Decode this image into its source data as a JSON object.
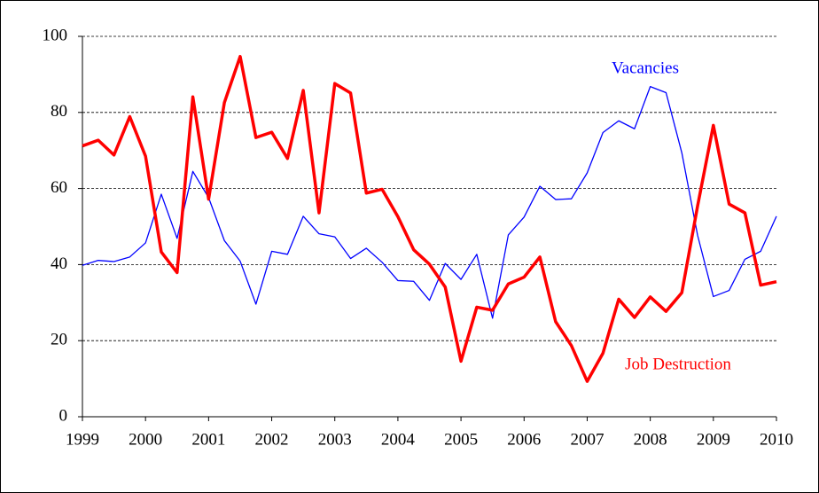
{
  "chart_data": {
    "type": "line",
    "x": [
      1999,
      1999.25,
      1999.5,
      1999.75,
      2000,
      2000.25,
      2000.5,
      2000.75,
      2001,
      2001.25,
      2001.5,
      2001.75,
      2002,
      2002.25,
      2002.5,
      2002.75,
      2003,
      2003.25,
      2003.5,
      2003.75,
      2004,
      2004.25,
      2004.5,
      2004.75,
      2005,
      2005.25,
      2005.5,
      2005.75,
      2006,
      2006.25,
      2006.5,
      2006.75,
      2007,
      2007.25,
      2007.5,
      2007.75,
      2008,
      2008.25,
      2008.5,
      2008.75,
      2009,
      2009.25,
      2009.5,
      2009.75,
      2010
    ],
    "series": [
      {
        "name": "Vacancies",
        "color": "#0000ff",
        "line_width": 1.3,
        "values": [
          39.8,
          41.1,
          40.8,
          42.0,
          45.7,
          58.5,
          46.9,
          64.5,
          57.6,
          46.3,
          40.9,
          29.6,
          43.5,
          42.7,
          52.7,
          48.1,
          47.3,
          41.6,
          44.3,
          40.6,
          35.8,
          35.6,
          30.6,
          40.3,
          36.1,
          42.7,
          25.9,
          47.8,
          52.5,
          60.6,
          57.1,
          57.3,
          64.1,
          74.7,
          77.8,
          75.7,
          86.8,
          85.2,
          69.4,
          47.7,
          31.6,
          33.2,
          41.4,
          43.5,
          52.7
        ]
      },
      {
        "name": "Job Destruction",
        "color": "#ff0000",
        "line_width": 3.5,
        "values": [
          71.2,
          72.7,
          68.8,
          78.9,
          68.5,
          43.3,
          37.9,
          84.1,
          57.2,
          82.6,
          94.7,
          73.4,
          74.8,
          67.9,
          85.8,
          53.6,
          87.6,
          85.1,
          58.8,
          59.8,
          52.6,
          43.9,
          40.1,
          34.1,
          14.6,
          28.8,
          28.0,
          34.9,
          36.7,
          42.0,
          25.0,
          18.7,
          9.3,
          16.7,
          30.9,
          26.1,
          31.5,
          27.7,
          32.6,
          55.4,
          76.6,
          55.9,
          53.6,
          34.6,
          35.5
        ]
      }
    ],
    "xlim": [
      1999,
      2010
    ],
    "xticks": [
      1999,
      2000,
      2001,
      2002,
      2003,
      2004,
      2005,
      2006,
      2007,
      2008,
      2009,
      2010
    ],
    "ylim": [
      0,
      100
    ],
    "yticks": [
      0,
      20,
      40,
      60,
      80,
      100
    ],
    "grid": true
  }
}
